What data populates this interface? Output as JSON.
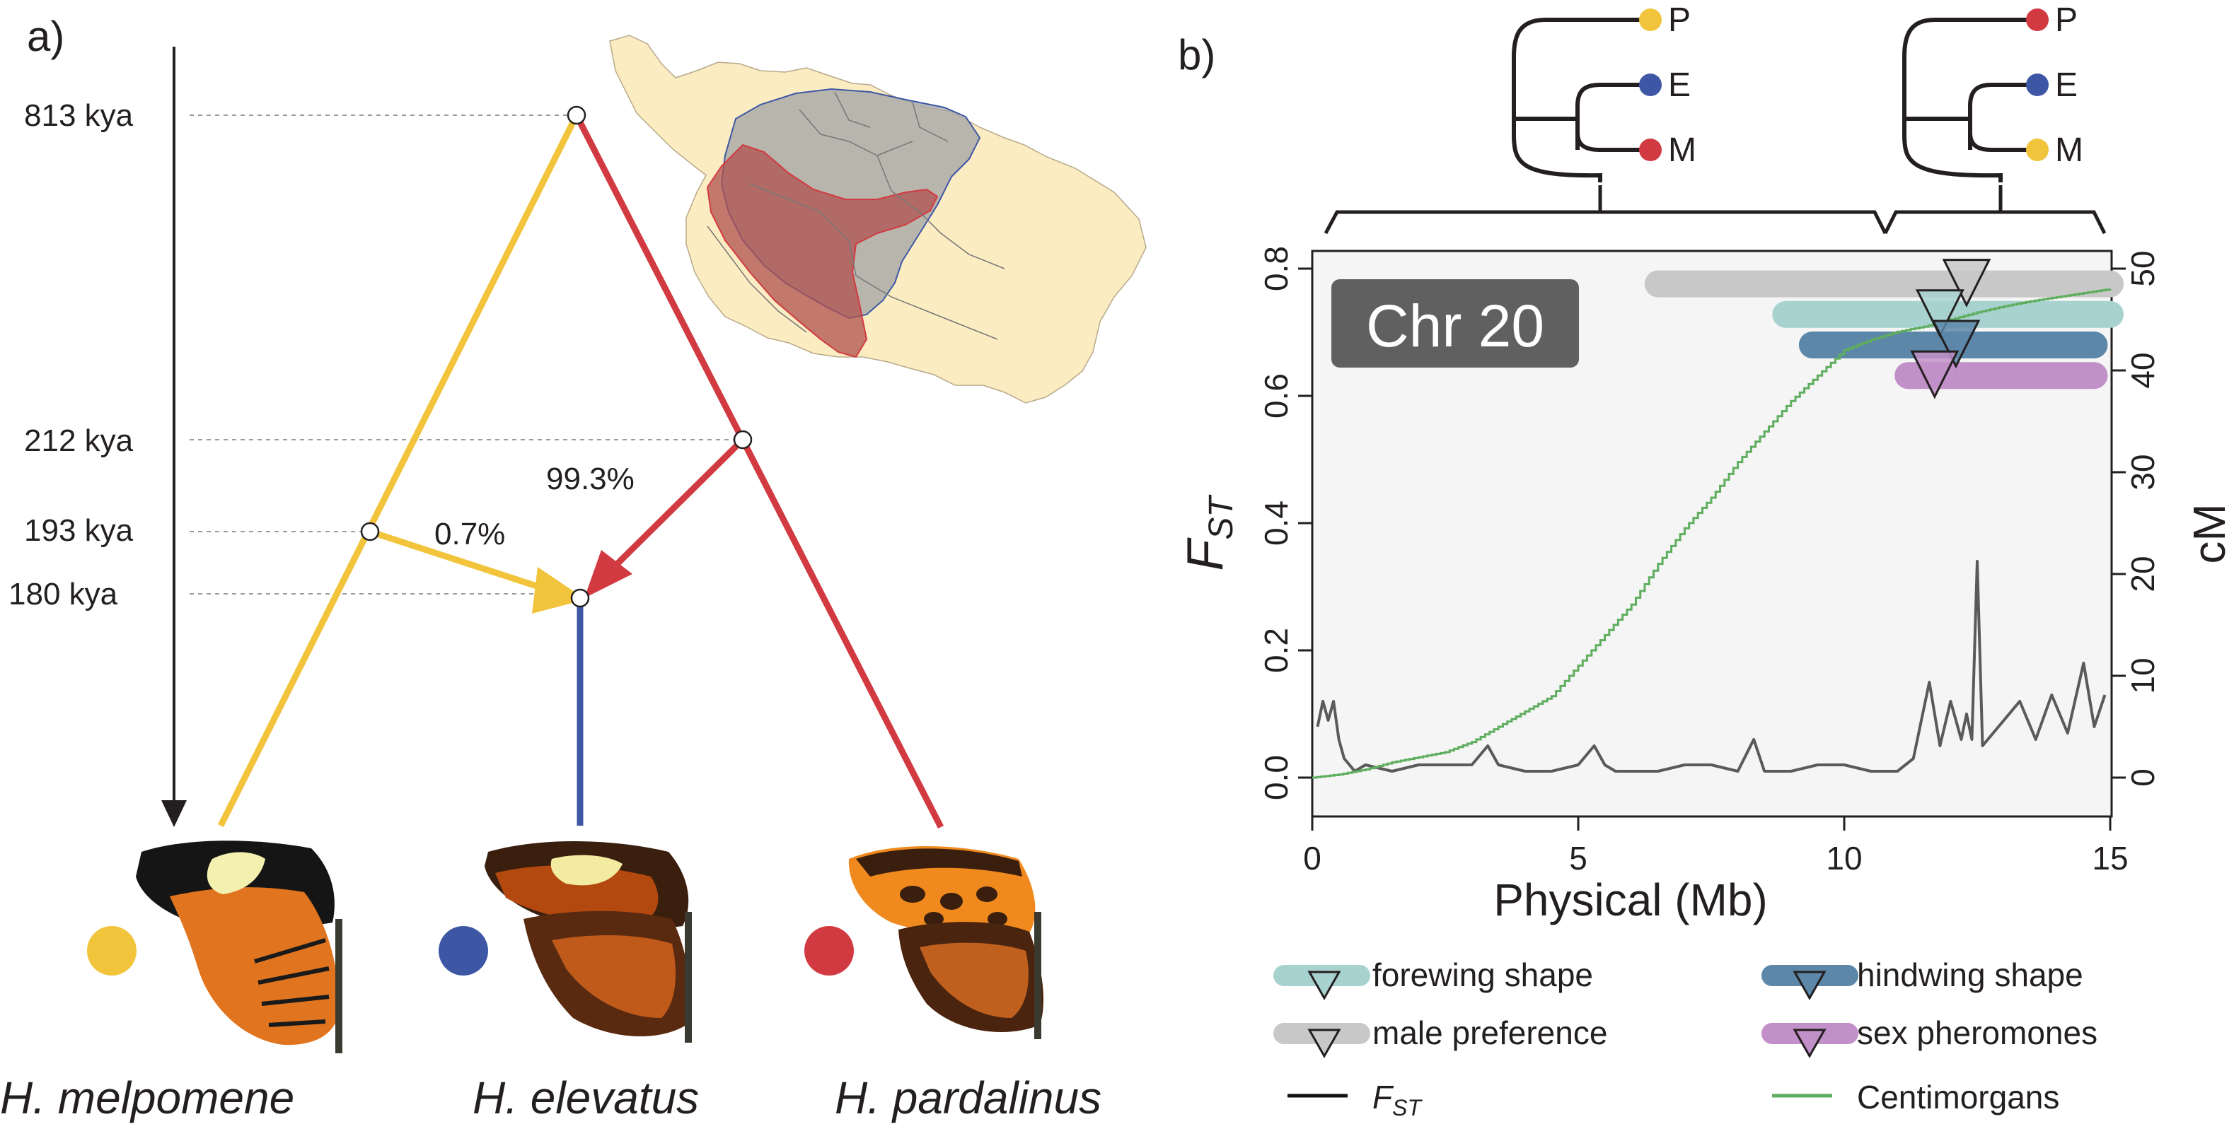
{
  "panel_a": {
    "label": "a)",
    "time_labels": [
      {
        "text": "813 kya",
        "kya": 813
      },
      {
        "text": "212 kya",
        "kya": 212
      },
      {
        "text": "193 kya",
        "kya": 193
      },
      {
        "text": "180 kya",
        "kya": 180
      }
    ],
    "introgression": {
      "yellow_pct": "0.7%",
      "red_pct": "99.3%"
    },
    "species": [
      {
        "name": "H. melpomene",
        "color": "#f2c43c"
      },
      {
        "name": "H. elevatus",
        "color": "#3d57a5"
      },
      {
        "name": "H. pardalinus",
        "color": "#d23a41"
      }
    ],
    "colors": {
      "yellow": "#f2c43c",
      "red": "#d23a41",
      "blue": "#3d57a5",
      "map_land": "#fbecc2",
      "map_grey": "#a8a8a8",
      "map_red": "#b0524f"
    }
  },
  "panel_b": {
    "label": "b)",
    "trees": [
      {
        "tips": [
          "P",
          "E",
          "M"
        ],
        "tip_colors": [
          "#f2c43c",
          "#3d57a5",
          "#d23a41"
        ]
      },
      {
        "tips": [
          "P",
          "E",
          "M"
        ],
        "tip_colors": [
          "#d23a41",
          "#3d57a5",
          "#f2c43c"
        ]
      }
    ],
    "chromosome_label": "Chr 20",
    "legend": [
      {
        "label": "forewing shape",
        "color": "#a8d2cf",
        "kind": "bar"
      },
      {
        "label": "hindwing shape",
        "color": "#5c87a8",
        "kind": "bar"
      },
      {
        "label": "male preference",
        "color": "#c8c8c8",
        "kind": "bar"
      },
      {
        "label": "sex pheromones",
        "color": "#c290c8",
        "kind": "bar"
      },
      {
        "label": "F",
        "sub": "ST",
        "color": "#111111",
        "kind": "line"
      },
      {
        "label": "Centimorgans",
        "color": "#5fae5f",
        "kind": "line"
      }
    ]
  },
  "chart_data": {
    "type": "line",
    "title": "Chr 20",
    "xlabel": "Physical (Mb)",
    "ylabel": "F",
    "ylabel_sub": "ST",
    "y2label": "cM",
    "xlim": [
      0,
      15
    ],
    "ylim": [
      0,
      0.8
    ],
    "y2lim": [
      0,
      50
    ],
    "xticks": [
      "0",
      "5",
      "10",
      "15"
    ],
    "yticks": [
      "0.0",
      "0.2",
      "0.4",
      "0.6",
      "0.8"
    ],
    "y2ticks": [
      "0",
      "10",
      "20",
      "30",
      "40",
      "50"
    ],
    "grid": false,
    "series": [
      {
        "name": "FST",
        "axis": "left",
        "color": "#5a5a5a",
        "x": [
          0.1,
          0.2,
          0.3,
          0.4,
          0.5,
          0.6,
          0.8,
          1.0,
          1.5,
          2.0,
          2.5,
          3.0,
          3.3,
          3.5,
          4.0,
          4.5,
          5.0,
          5.3,
          5.5,
          5.7,
          6.0,
          6.5,
          7.0,
          7.5,
          8.0,
          8.3,
          8.5,
          9.0,
          9.5,
          10.0,
          10.5,
          11.0,
          11.3,
          11.6,
          11.8,
          12.0,
          12.2,
          12.3,
          12.4,
          12.5,
          12.6,
          12.8,
          13.0,
          13.3,
          13.6,
          13.9,
          14.2,
          14.5,
          14.7,
          14.9
        ],
        "y": [
          0.08,
          0.12,
          0.09,
          0.12,
          0.06,
          0.03,
          0.01,
          0.02,
          0.01,
          0.02,
          0.02,
          0.02,
          0.05,
          0.02,
          0.01,
          0.01,
          0.02,
          0.05,
          0.02,
          0.01,
          0.01,
          0.01,
          0.02,
          0.02,
          0.01,
          0.06,
          0.01,
          0.01,
          0.02,
          0.02,
          0.01,
          0.01,
          0.03,
          0.15,
          0.05,
          0.12,
          0.06,
          0.1,
          0.06,
          0.34,
          0.05,
          0.07,
          0.09,
          0.12,
          0.06,
          0.13,
          0.07,
          0.18,
          0.08,
          0.13
        ]
      },
      {
        "name": "Centimorgans",
        "axis": "right",
        "color": "#5fae5f",
        "x": [
          0,
          0.5,
          1,
          1.5,
          2,
          2.5,
          3,
          3.5,
          4,
          4.5,
          5,
          5.5,
          6,
          6.5,
          7,
          7.5,
          8,
          8.5,
          9,
          9.5,
          10,
          10.5,
          11,
          11.5,
          12,
          12.5,
          13,
          13.5,
          14,
          14.5,
          15
        ],
        "y": [
          0,
          0.3,
          0.8,
          1.5,
          2,
          2.5,
          3.5,
          5,
          6.5,
          8,
          11,
          14,
          17,
          21,
          24.5,
          27.5,
          31,
          34,
          37,
          39.5,
          42,
          43,
          43.8,
          44.3,
          45,
          45.7,
          46.3,
          46.8,
          47.2,
          47.6,
          48
        ]
      }
    ],
    "qtl_intervals": [
      {
        "trait": "male preference",
        "start": 6.5,
        "end": 15.0,
        "peak": 12.3,
        "level_cm": 48.5
      },
      {
        "trait": "forewing shape",
        "start": 8.9,
        "end": 15.0,
        "peak": 11.8,
        "level_cm": 45.5
      },
      {
        "trait": "hindwing shape",
        "start": 9.4,
        "end": 14.7,
        "peak": 12.1,
        "level_cm": 42.5
      },
      {
        "trait": "sex pheromones",
        "start": 11.2,
        "end": 14.7,
        "peak": 11.7,
        "level_cm": 39.5
      }
    ]
  }
}
